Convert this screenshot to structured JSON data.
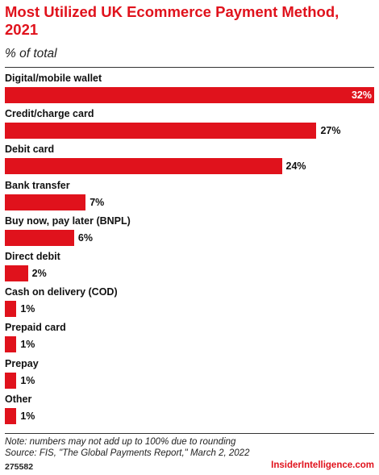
{
  "header": {
    "title": "Most Utilized UK Ecommerce Payment Method, 2021",
    "subtitle": "% of total"
  },
  "chart_data": {
    "type": "bar",
    "orientation": "horizontal",
    "title": "Most Utilized UK Ecommerce Payment Method, 2021",
    "subtitle": "% of total",
    "categories": [
      "Digital/mobile wallet",
      "Credit/charge card",
      "Debit card",
      "Bank transfer",
      "Buy now, pay later (BNPL)",
      "Direct debit",
      "Cash on delivery (COD)",
      "Prepaid card",
      "Prepay",
      "Other"
    ],
    "values": [
      32,
      27,
      24,
      7,
      6,
      2,
      1,
      1,
      1,
      1
    ],
    "value_labels": [
      "32%",
      "27%",
      "24%",
      "7%",
      "6%",
      "2%",
      "1%",
      "1%",
      "1%",
      "1%"
    ],
    "unit": "%",
    "xlim": [
      0,
      32
    ],
    "grid": false,
    "legend": "none",
    "bar_color": "#e0121c"
  },
  "footer": {
    "note": "Note: numbers may not add up to 100% due to rounding",
    "source": "Source: FIS, \"The Global Payments Report,\" March 2, 2022",
    "chart_id": "275582",
    "brand": "InsiderIntelligence.com"
  }
}
